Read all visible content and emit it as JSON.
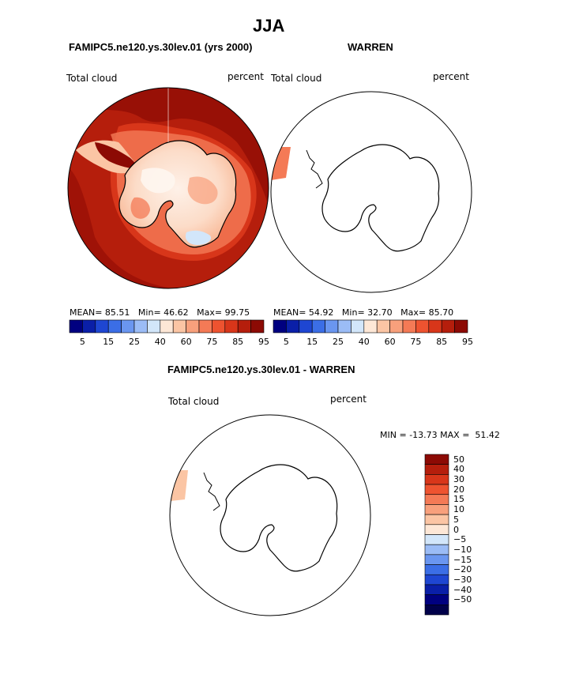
{
  "page": {
    "title": "JJA",
    "subtitle_left": "FAMIPC5.ne120.ys.30lev.01 (yrs 2000)",
    "subtitle_right": "WARREN",
    "diff_title": "FAMIPC5.ne120.ys.30lev.01 - WARREN"
  },
  "chart_data": [
    {
      "type": "heatmap",
      "name": "model-panel",
      "title": "FAMIPC5.ne120.ys.30lev.01 (yrs 2000)",
      "variable": "Total cloud",
      "units": "percent",
      "projection": "south-polar-stereographic",
      "stats": {
        "mean_label": "MEAN=",
        "mean": "85.51",
        "min_label": "Min=",
        "min": "46.62",
        "max_label": "Max=",
        "max": "99.75"
      },
      "colorbar": {
        "levels": [
          5,
          10,
          15,
          20,
          25,
          30,
          40,
          50,
          60,
          65,
          75,
          80,
          85,
          90,
          95
        ],
        "tick_labels": [
          "5",
          "15",
          "25",
          "40",
          "60",
          "75",
          "85",
          "95"
        ]
      }
    },
    {
      "type": "heatmap",
      "name": "obs-panel",
      "title": "WARREN",
      "variable": "Total cloud",
      "units": "percent",
      "projection": "south-polar-stereographic",
      "stats": {
        "mean_label": "MEAN=",
        "mean": "54.92",
        "min_label": "Min=",
        "min": "32.70",
        "max_label": "Max=",
        "max": "85.70"
      },
      "colorbar": {
        "levels": [
          5,
          10,
          15,
          20,
          25,
          30,
          40,
          50,
          60,
          65,
          75,
          80,
          85,
          90,
          95
        ],
        "tick_labels": [
          "5",
          "15",
          "25",
          "40",
          "60",
          "75",
          "85",
          "95"
        ]
      }
    },
    {
      "type": "heatmap",
      "name": "difference-panel",
      "title": "FAMIPC5.ne120.ys.30lev.01 - WARREN",
      "variable": "Total cloud",
      "units": "percent",
      "projection": "south-polar-stereographic",
      "stats": {
        "min_label": "MIN =",
        "min": "-13.73",
        "max_label": "MAX =",
        "max": "51.42"
      },
      "colorbar": {
        "orientation": "vertical",
        "tick_labels": [
          "50",
          "40",
          "30",
          "20",
          "15",
          "10",
          "5",
          "0",
          "−5",
          "−10",
          "−15",
          "−20",
          "−30",
          "−40",
          "−50"
        ]
      }
    }
  ],
  "colors": {
    "h_bar": [
      "#000080",
      "#0a1fa8",
      "#1e46d2",
      "#3b6ee6",
      "#6a96f0",
      "#9bbcf6",
      "#d2e6fa",
      "#fde7d6",
      "#fbc5a4",
      "#f8a07c",
      "#f47a56",
      "#ee5330",
      "#d8361a",
      "#b51e0c",
      "#8c0a04"
    ],
    "v_bar": [
      "#8c0a04",
      "#b51e0c",
      "#d8361a",
      "#ee5330",
      "#f47a56",
      "#f8a07c",
      "#fbc5a4",
      "#fde7d6",
      "#d2e6fa",
      "#9bbcf6",
      "#6a96f0",
      "#3b6ee6",
      "#1e46d2",
      "#0a1fa8",
      "#000080",
      "#00004a"
    ],
    "ocean_deep": "#b51e0c",
    "ocean_mid": "#d8361a",
    "coast_bright": "#f47a56",
    "interior": "#fbd8c4",
    "interior_light": "#fde7d6",
    "diff_strip": "#fbc5a4",
    "obs_strip": "#f47a56"
  }
}
